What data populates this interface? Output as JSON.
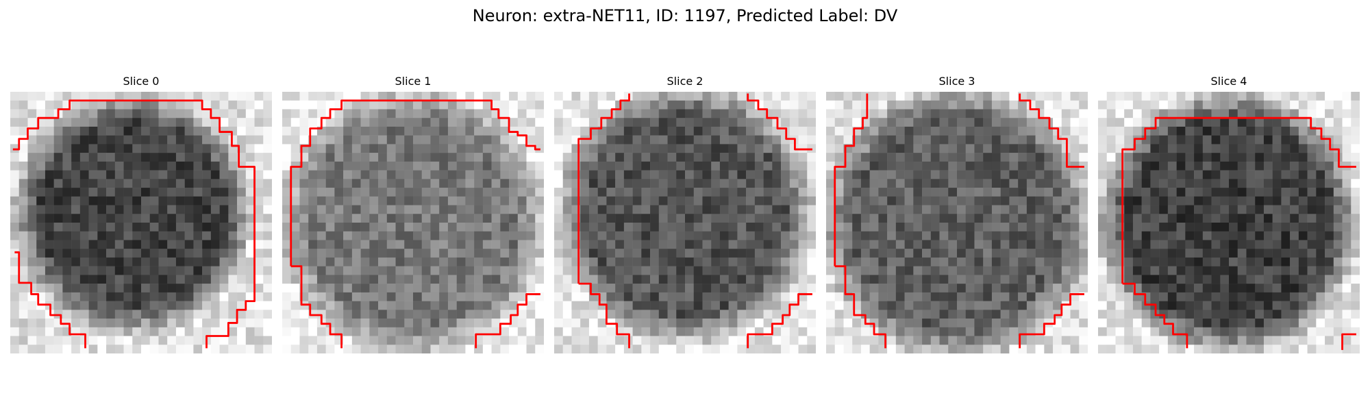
{
  "figure": {
    "title": "Neuron: extra-NET11, ID: 1197, Predicted Label: DV",
    "contour_color": "#ff0000"
  },
  "panels": [
    {
      "label": "Slice 0"
    },
    {
      "label": "Slice 1"
    },
    {
      "label": "Slice 2"
    },
    {
      "label": "Slice 3"
    },
    {
      "label": "Slice 4"
    }
  ]
}
